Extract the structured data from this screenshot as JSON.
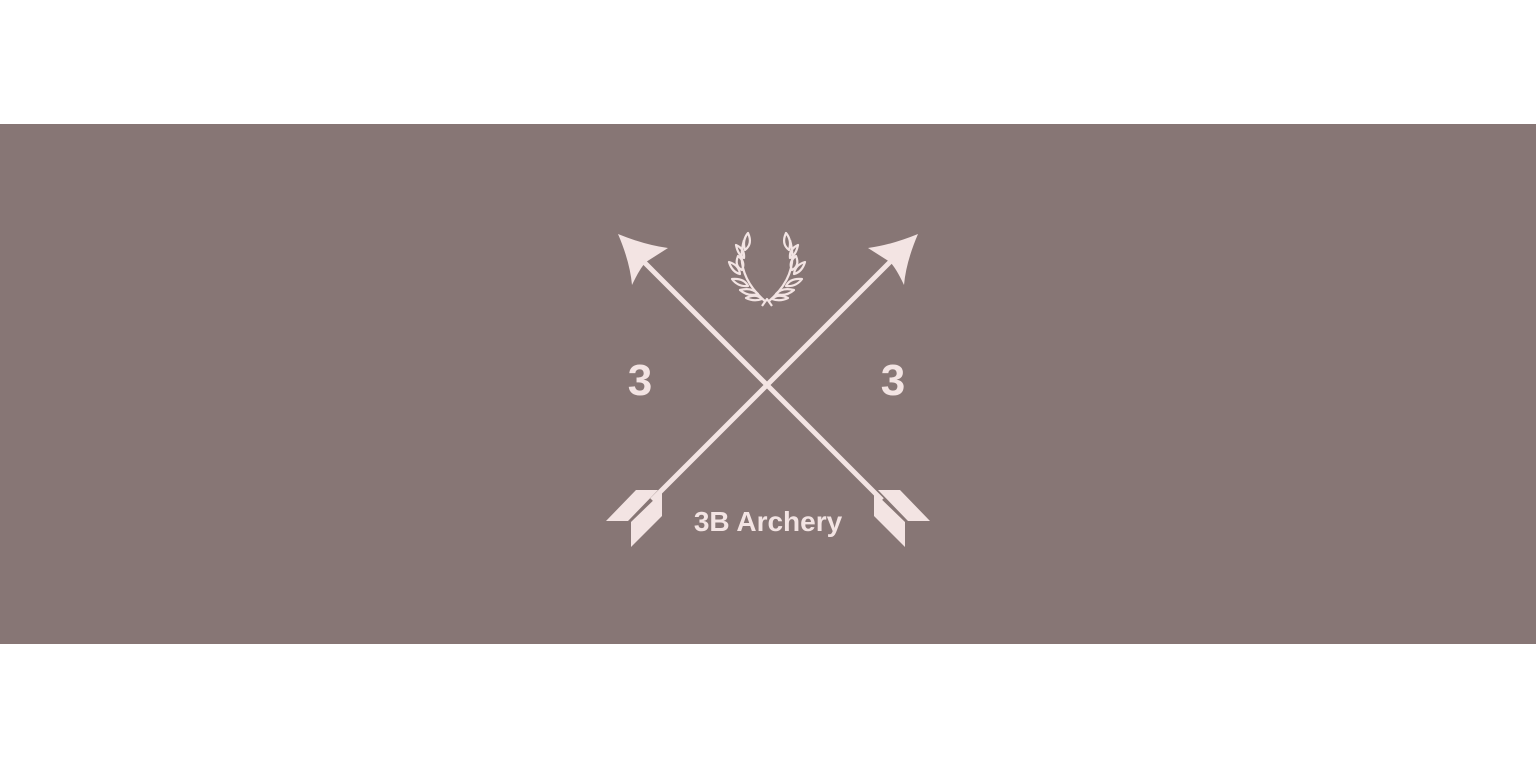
{
  "banner": {
    "background_color": "#877675",
    "emblem_color": "#f3e4e3"
  },
  "logo": {
    "left_number": "3",
    "right_number": "3",
    "brand_name": "3B Archery",
    "icons": [
      "laurel-wreath-icon",
      "crossed-arrows-icon"
    ]
  }
}
